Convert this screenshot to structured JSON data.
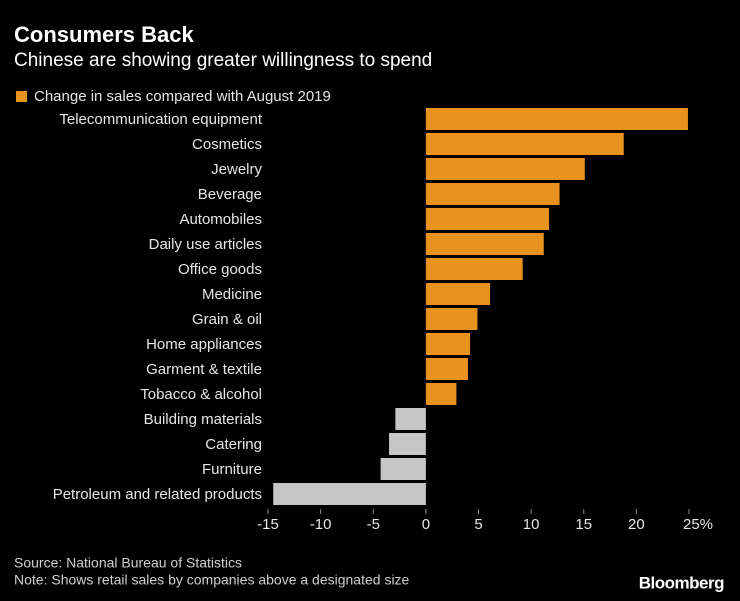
{
  "chart_data": {
    "type": "hbar",
    "title": "Consumers Back",
    "subtitle": "Chinese are showing greater willingness to spend",
    "categories": [
      "Telecommunication equipment",
      "Cosmetics",
      "Jewelry",
      "Beverage",
      "Automobiles",
      "Daily use articles",
      "Office goods",
      "Medicine",
      "Grain & oil",
      "Home appliances",
      "Garment & textile",
      "Tobacco & alcohol",
      "Building materials",
      "Catering",
      "Furniture",
      "Petroleum and related products"
    ],
    "series": [
      {
        "name": "Change in sales compared with August 2019",
        "color": "#e8921f",
        "values": [
          24.9,
          18.8,
          15.1,
          12.7,
          11.7,
          11.2,
          9.2,
          6.1,
          4.9,
          4.2,
          4.0,
          2.9,
          -2.9,
          -3.5,
          -4.3,
          -14.5
        ]
      }
    ],
    "negative_color": "#c6c6c6",
    "xlim": [
      -15.5,
      25.5
    ],
    "xticks": [
      -15,
      -10,
      -5,
      0,
      5,
      10,
      15,
      20,
      {
        "value": 25,
        "label": "25%"
      }
    ],
    "source": "Source: National Bureau of Statistics",
    "note": "Note: Shows retail sales by companies above a designated size",
    "brand": "Bloomberg"
  }
}
